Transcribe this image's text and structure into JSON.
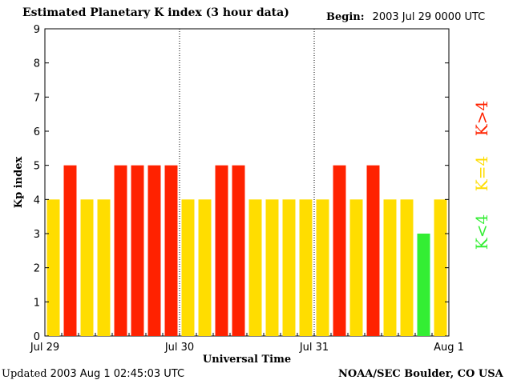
{
  "header": {
    "title": "Estimated Planetary K index (3 hour data)",
    "begin_label": "Begin:",
    "begin_value": "2003 Jul 29 0000 UTC"
  },
  "footer": {
    "updated_label": "Updated",
    "updated_value": "2003 Aug  1 02:45:03 UTC",
    "source": "NOAA/SEC Boulder, CO USA"
  },
  "chart_data": {
    "type": "bar",
    "title": "Estimated Planetary K index (3 hour data)",
    "xlabel": "Universal Time",
    "ylabel": "Kp index",
    "ylim": [
      0,
      9
    ],
    "y_ticks": [
      "0",
      "1",
      "2",
      "3",
      "4",
      "5",
      "6",
      "7",
      "8",
      "9"
    ],
    "x_tick_labels": [
      "Jul 29",
      "Jul 30",
      "Jul 31",
      "Aug 1"
    ],
    "grid": false,
    "day_separators": true,
    "values": [
      4,
      5,
      4,
      4,
      5,
      5,
      5,
      5,
      4,
      4,
      5,
      5,
      4,
      4,
      4,
      4,
      4,
      5,
      4,
      5,
      4,
      4,
      3,
      4
    ],
    "colors": {
      "low": "#33ee33",
      "mid": "#ffdd00",
      "high": "#ff2200"
    },
    "legend": [
      {
        "label": "K<4",
        "color": "#33ee33"
      },
      {
        "label": "K=4",
        "color": "#ffdd00"
      },
      {
        "label": "K>4",
        "color": "#ff2200"
      }
    ],
    "legend_position": "right"
  }
}
